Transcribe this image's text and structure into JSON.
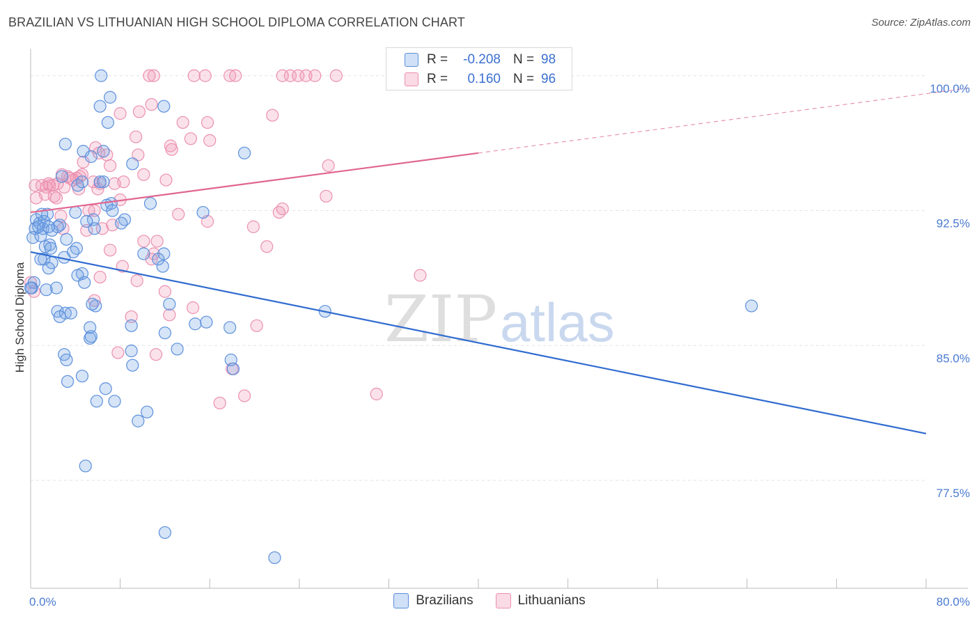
{
  "header": {
    "title": "BRAZILIAN VS LITHUANIAN HIGH SCHOOL DIPLOMA CORRELATION CHART",
    "source": "Source: ZipAtlas.com"
  },
  "watermark": {
    "zip": "ZIP",
    "atlas": "atlas"
  },
  "legend": {
    "rows": [
      {
        "r_label": "R =",
        "r_value": "-0.208",
        "n_label": "N =",
        "n_value": "98"
      },
      {
        "r_label": "R =",
        "r_value": "0.160",
        "n_label": "N =",
        "n_value": "96"
      }
    ]
  },
  "bottom_legend": {
    "series_1": "Brazilians",
    "series_2": "Lithuanians"
  },
  "colors": {
    "blue_fill": "rgba(120,165,230,0.30)",
    "blue_stroke": "#5b8fdc",
    "blue_line": "#2f6bd0",
    "pink_fill": "rgba(240,150,180,0.28)",
    "pink_stroke": "#eb8fb0",
    "pink_line": "#e0658f",
    "tick_color": "#4a7bd0"
  },
  "chart_data": {
    "type": "scatter",
    "title": "BRAZILIAN VS LITHUANIAN HIGH SCHOOL DIPLOMA CORRELATION CHART",
    "xlabel": "",
    "ylabel": "High School Diploma",
    "xlim": [
      0,
      80
    ],
    "ylim": [
      71.5,
      101.5
    ],
    "x_tick_labels": [
      {
        "value": 0,
        "label": "0.0%"
      },
      {
        "value": 80,
        "label": "80.0%"
      }
    ],
    "y_tick_labels": [
      {
        "value": 100,
        "label": "100.0%"
      },
      {
        "value": 92.5,
        "label": "92.5%"
      },
      {
        "value": 85,
        "label": "85.0%"
      },
      {
        "value": 77.5,
        "label": "77.5%"
      }
    ],
    "series": [
      {
        "name": "Brazilians",
        "trend": {
          "x0": 0,
          "y0": 90.2,
          "x1": 80,
          "y1": 80.1,
          "dashed_from": null
        },
        "points": [
          [
            6.3,
            100
          ],
          [
            7.1,
            98.8
          ],
          [
            6.2,
            98.3
          ],
          [
            11.9,
            98.3
          ],
          [
            6.9,
            97.4
          ],
          [
            3.1,
            96.2
          ],
          [
            4.7,
            95.8
          ],
          [
            6.5,
            95.8
          ],
          [
            5.4,
            95.5
          ],
          [
            19.1,
            95.7
          ],
          [
            9.1,
            95.1
          ],
          [
            2.8,
            94.4
          ],
          [
            4.6,
            94.1
          ],
          [
            6.2,
            94.1
          ],
          [
            6.5,
            94.1
          ],
          [
            4.2,
            93.9
          ],
          [
            10.7,
            92.9
          ],
          [
            7.2,
            92.9
          ],
          [
            6.8,
            92.8
          ],
          [
            7.3,
            92.5
          ],
          [
            15.4,
            92.4
          ],
          [
            4.0,
            92.4
          ],
          [
            1.5,
            92.3
          ],
          [
            0.5,
            92.0
          ],
          [
            0.8,
            91.8
          ],
          [
            1.2,
            91.9
          ],
          [
            5.6,
            92.0
          ],
          [
            8.4,
            92.0
          ],
          [
            8.1,
            91.8
          ],
          [
            2.6,
            91.7
          ],
          [
            0.4,
            91.5
          ],
          [
            1.1,
            91.5
          ],
          [
            1.9,
            91.4
          ],
          [
            5.7,
            91.5
          ],
          [
            0.2,
            91.0
          ],
          [
            0.9,
            91.1
          ],
          [
            3.2,
            90.9
          ],
          [
            1.7,
            90.6
          ],
          [
            1.3,
            90.5
          ],
          [
            1.8,
            90.4
          ],
          [
            4.1,
            90.4
          ],
          [
            3.8,
            90.2
          ],
          [
            10.1,
            90.1
          ],
          [
            11.9,
            90.1
          ],
          [
            3.0,
            89.9
          ],
          [
            1.2,
            89.8
          ],
          [
            0.9,
            89.8
          ],
          [
            1.9,
            89.6
          ],
          [
            11.4,
            89.8
          ],
          [
            11.8,
            89.4
          ],
          [
            1.6,
            89.3
          ],
          [
            4.6,
            89.0
          ],
          [
            4.2,
            88.9
          ],
          [
            0.3,
            88.5
          ],
          [
            0.1,
            88.2
          ],
          [
            2.3,
            88.2
          ],
          [
            1.4,
            88.1
          ],
          [
            4.8,
            88.5
          ],
          [
            12.4,
            87.3
          ],
          [
            5.8,
            87.2
          ],
          [
            5.5,
            87.3
          ],
          [
            2.4,
            86.9
          ],
          [
            3.1,
            86.8
          ],
          [
            3.6,
            86.8
          ],
          [
            2.6,
            86.6
          ],
          [
            26.3,
            86.9
          ],
          [
            64.4,
            87.2
          ],
          [
            9.0,
            86.1
          ],
          [
            14.7,
            86.2
          ],
          [
            15.7,
            86.3
          ],
          [
            17.8,
            86.0
          ],
          [
            5.3,
            86.0
          ],
          [
            12.0,
            85.7
          ],
          [
            5.3,
            85.4
          ],
          [
            5.4,
            85.5
          ],
          [
            9.0,
            84.7
          ],
          [
            13.1,
            84.8
          ],
          [
            3.0,
            84.5
          ],
          [
            3.2,
            84.2
          ],
          [
            17.9,
            84.2
          ],
          [
            18.1,
            83.7
          ],
          [
            9.1,
            83.9
          ],
          [
            4.6,
            83.3
          ],
          [
            3.3,
            83.0
          ],
          [
            6.7,
            82.6
          ],
          [
            5.9,
            81.9
          ],
          [
            7.5,
            81.9
          ],
          [
            10.4,
            81.3
          ],
          [
            9.6,
            80.8
          ],
          [
            4.9,
            78.3
          ],
          [
            12.0,
            74.6
          ],
          [
            21.8,
            73.2
          ],
          [
            1.0,
            92.3
          ],
          [
            2.4,
            91.6
          ],
          [
            0.7,
            91.6
          ],
          [
            1.6,
            91.6
          ],
          [
            5.0,
            91.9
          ],
          [
            0.0,
            88.2
          ]
        ]
      },
      {
        "name": "Lithuanians",
        "trend": {
          "x0": 0,
          "y0": 92.4,
          "x1": 80,
          "y1": 99.0,
          "dashed_from": 40
        },
        "points": [
          [
            10.6,
            100
          ],
          [
            11.0,
            100
          ],
          [
            14.6,
            100
          ],
          [
            15.6,
            100
          ],
          [
            17.8,
            100
          ],
          [
            18.3,
            100
          ],
          [
            22.5,
            100
          ],
          [
            23.2,
            100
          ],
          [
            23.9,
            100
          ],
          [
            24.6,
            100
          ],
          [
            25.4,
            100
          ],
          [
            27.3,
            100
          ],
          [
            32.3,
            100
          ],
          [
            10.8,
            98.4
          ],
          [
            9.7,
            98.0
          ],
          [
            8.0,
            97.9
          ],
          [
            21.6,
            97.8
          ],
          [
            13.6,
            97.4
          ],
          [
            15.8,
            97.4
          ],
          [
            9.4,
            96.6
          ],
          [
            14.3,
            96.5
          ],
          [
            16.0,
            96.4
          ],
          [
            12.5,
            96.1
          ],
          [
            12.6,
            95.9
          ],
          [
            5.8,
            96.0
          ],
          [
            6.1,
            95.7
          ],
          [
            6.8,
            95.6
          ],
          [
            9.6,
            95.6
          ],
          [
            4.7,
            95.2
          ],
          [
            7.1,
            95.0
          ],
          [
            26.6,
            95.0
          ],
          [
            2.8,
            94.5
          ],
          [
            3.3,
            94.4
          ],
          [
            4.4,
            94.4
          ],
          [
            4.6,
            94.5
          ],
          [
            10.1,
            94.5
          ],
          [
            4.1,
            94.3
          ],
          [
            3.5,
            94.3
          ],
          [
            1.6,
            94.0
          ],
          [
            2.4,
            94.0
          ],
          [
            8.3,
            94.1
          ],
          [
            12.1,
            94.2
          ],
          [
            5.6,
            94.1
          ],
          [
            6.2,
            94.0
          ],
          [
            0.4,
            93.9
          ],
          [
            1.0,
            93.9
          ],
          [
            1.4,
            93.8
          ],
          [
            1.7,
            93.9
          ],
          [
            3.0,
            93.8
          ],
          [
            4.3,
            93.7
          ],
          [
            1.3,
            93.4
          ],
          [
            2.1,
            93.3
          ],
          [
            0.5,
            93.2
          ],
          [
            2.3,
            93.2
          ],
          [
            26.4,
            93.3
          ],
          [
            8.0,
            93.1
          ],
          [
            5.2,
            92.5
          ],
          [
            5.7,
            92.5
          ],
          [
            22.5,
            92.6
          ],
          [
            22.2,
            92.4
          ],
          [
            13.2,
            92.3
          ],
          [
            2.7,
            92.2
          ],
          [
            15.8,
            91.9
          ],
          [
            7.3,
            91.7
          ],
          [
            19.9,
            91.6
          ],
          [
            2.9,
            91.5
          ],
          [
            5.0,
            91.4
          ],
          [
            6.4,
            91.5
          ],
          [
            10.1,
            90.8
          ],
          [
            11.3,
            90.8
          ],
          [
            21.1,
            90.5
          ],
          [
            7.1,
            90.3
          ],
          [
            11.0,
            90.1
          ],
          [
            10.8,
            89.8
          ],
          [
            8.2,
            89.4
          ],
          [
            34.8,
            88.9
          ],
          [
            6.2,
            88.8
          ],
          [
            9.5,
            88.6
          ],
          [
            12.0,
            88.0
          ],
          [
            5.7,
            87.5
          ],
          [
            14.5,
            87.1
          ],
          [
            9.0,
            86.6
          ],
          [
            12.4,
            86.7
          ],
          [
            20.2,
            86.1
          ],
          [
            7.8,
            84.6
          ],
          [
            11.2,
            84.5
          ],
          [
            18.0,
            83.7
          ],
          [
            30.9,
            82.3
          ],
          [
            19.1,
            82.2
          ],
          [
            16.9,
            81.8
          ],
          [
            0.3,
            88.0
          ],
          [
            0.0,
            88.5
          ],
          [
            3.8,
            94.2
          ],
          [
            7.5,
            94.0
          ],
          [
            2.0,
            93.9
          ],
          [
            6.0,
            93.7
          ]
        ]
      }
    ]
  }
}
